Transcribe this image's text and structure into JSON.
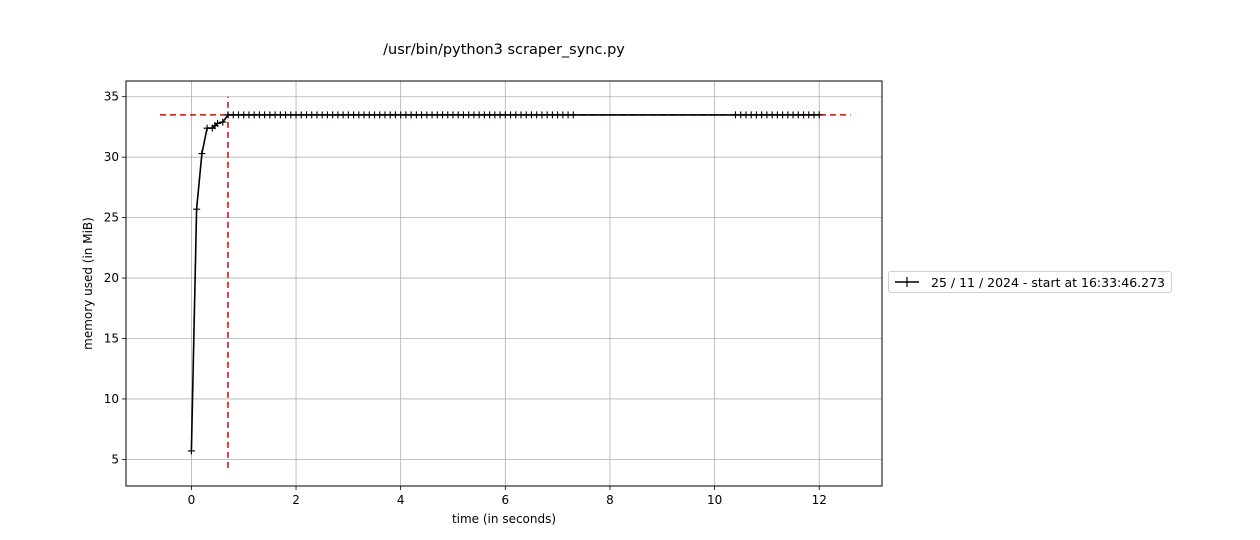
{
  "chart_data": {
    "type": "line",
    "title": "/usr/bin/python3 scraper_sync.py",
    "xlabel": "time (in seconds)",
    "ylabel": "memory used (in MiB)",
    "xlim": [
      -1.25,
      13.2
    ],
    "ylim": [
      2.8,
      36.3
    ],
    "xticks": [
      0,
      2,
      4,
      6,
      8,
      10,
      12
    ],
    "yticks": [
      5,
      10,
      15,
      20,
      25,
      30,
      35
    ],
    "grid": true,
    "legend_position": "outside-right",
    "series": [
      {
        "name": "25 / 11 / 2024 - start at 16:33:46.273",
        "color": "#000000",
        "marker": "+",
        "x": [
          0.0,
          0.1,
          0.2,
          0.3,
          0.4,
          0.45,
          0.5,
          0.6,
          0.7,
          0.8,
          0.9,
          1.0,
          1.1,
          1.2,
          1.3,
          1.4,
          1.5,
          1.6,
          1.7,
          1.8,
          1.9,
          2.0,
          2.1,
          2.2,
          2.3,
          2.4,
          2.5,
          2.6,
          2.7,
          2.8,
          2.9,
          3.0,
          3.1,
          3.2,
          3.3,
          3.4,
          3.5,
          3.6,
          3.7,
          3.8,
          3.9,
          4.0,
          4.1,
          4.2,
          4.3,
          4.4,
          4.5,
          4.6,
          4.7,
          4.8,
          4.9,
          5.0,
          5.1,
          5.2,
          5.3,
          5.4,
          5.5,
          5.6,
          5.7,
          5.8,
          5.9,
          6.0,
          6.1,
          6.2,
          6.3,
          6.4,
          6.5,
          6.6,
          6.7,
          6.8,
          6.9,
          7.0,
          7.1,
          7.2,
          7.3,
          10.4,
          10.5,
          10.6,
          10.7,
          10.8,
          10.9,
          11.0,
          11.1,
          11.2,
          11.3,
          11.4,
          11.5,
          11.6,
          11.7,
          11.8,
          11.9,
          12.0
        ],
        "y": [
          5.7,
          25.7,
          30.3,
          32.4,
          32.4,
          32.6,
          32.8,
          32.9,
          33.5,
          33.5,
          33.5,
          33.5,
          33.5,
          33.5,
          33.5,
          33.5,
          33.5,
          33.5,
          33.5,
          33.5,
          33.5,
          33.5,
          33.5,
          33.5,
          33.5,
          33.5,
          33.5,
          33.5,
          33.5,
          33.5,
          33.5,
          33.5,
          33.5,
          33.5,
          33.5,
          33.5,
          33.5,
          33.5,
          33.5,
          33.5,
          33.5,
          33.5,
          33.5,
          33.5,
          33.5,
          33.5,
          33.5,
          33.5,
          33.5,
          33.5,
          33.5,
          33.5,
          33.5,
          33.5,
          33.5,
          33.5,
          33.5,
          33.5,
          33.5,
          33.5,
          33.5,
          33.5,
          33.5,
          33.5,
          33.5,
          33.5,
          33.5,
          33.5,
          33.5,
          33.5,
          33.5,
          33.5,
          33.5,
          33.5,
          33.5,
          33.5,
          33.5,
          33.5,
          33.5,
          33.5,
          33.5,
          33.5,
          33.5,
          33.5,
          33.5,
          33.5,
          33.5,
          33.5,
          33.5,
          33.5,
          33.5,
          33.5
        ]
      }
    ],
    "reference_lines": {
      "color": "#e60000",
      "style": "dashed",
      "max_memory_y": 33.5,
      "max_memory_x_range": [
        -0.6,
        12.6
      ],
      "peak_time_x": 0.7,
      "peak_time_y_range": [
        4.3,
        35.0
      ]
    }
  }
}
